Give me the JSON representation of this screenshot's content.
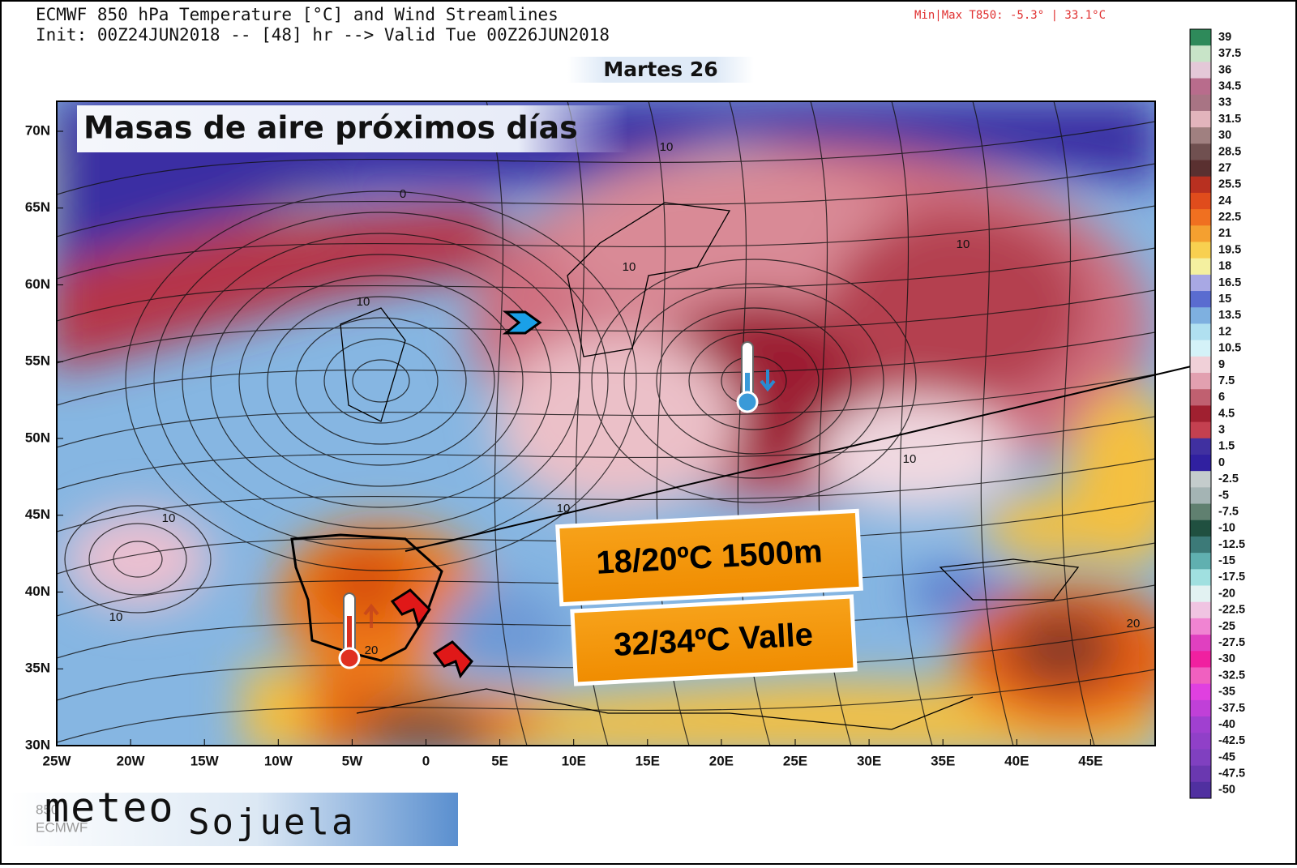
{
  "header": {
    "title": "ECMWF 850 hPa Temperature [°C] and Wind Streamlines",
    "subtitle": "Init: 00Z24JUN2018 -- [48] hr --> Valid Tue 00Z26JUN2018",
    "minmax": "Min|Max T850:  -5.3° |  33.1°C",
    "day": "Martes 26"
  },
  "map": {
    "caption": "Masas de aire próximos días",
    "lat_labels": [
      "70N",
      "65N",
      "60N",
      "55N",
      "50N",
      "45N",
      "40N",
      "35N",
      "30N"
    ],
    "lon_labels": [
      "25W",
      "20W",
      "15W",
      "10W",
      "5W",
      "0",
      "5E",
      "10E",
      "15E",
      "20E",
      "25E",
      "30E",
      "35E",
      "40E",
      "45E"
    ],
    "contour_labels": [
      "0",
      "10",
      "10",
      "10",
      "10",
      "10",
      "10",
      "10",
      "10",
      "20",
      "20"
    ],
    "annotations": [
      "18/20ºC 1500m",
      "32/34ºC Valle"
    ]
  },
  "colorbar": {
    "labels": [
      "39",
      "37.5",
      "36",
      "34.5",
      "33",
      "31.5",
      "30",
      "28.5",
      "27",
      "25.5",
      "24",
      "22.5",
      "21",
      "19.5",
      "18",
      "16.5",
      "15",
      "13.5",
      "12",
      "10.5",
      "9",
      "7.5",
      "6",
      "4.5",
      "3",
      "1.5",
      "0",
      "-2.5",
      "-5",
      "-7.5",
      "-10",
      "-12.5",
      "-15",
      "-17.5",
      "-20",
      "-22.5",
      "-25",
      "-27.5",
      "-30",
      "-32.5",
      "-35",
      "-37.5",
      "-40",
      "-42.5",
      "-45",
      "-47.5",
      "-50"
    ]
  },
  "logo": {
    "faint": "850",
    "model": "ECMWF",
    "brand_1": "meteo",
    "brand_2": "Sojuela"
  }
}
